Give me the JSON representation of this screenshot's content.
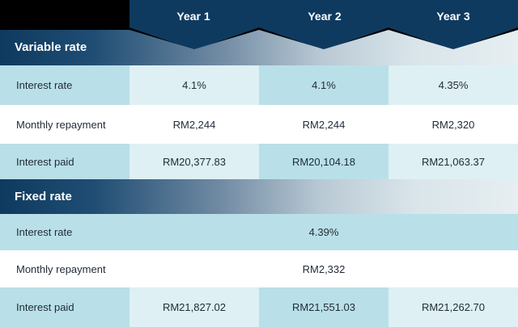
{
  "columns": [
    "Year 1",
    "Year 2",
    "Year 3"
  ],
  "colors": {
    "header_navy": "#0f3a5f",
    "row_dark": "#b9e0e8",
    "row_light": "#def0f3",
    "row_white": "#ffffff"
  },
  "variable_rate": {
    "title": "Variable rate",
    "rows": [
      {
        "label": "Interest rate",
        "values": [
          "4.1%",
          "4.1%",
          "4.35%"
        ]
      },
      {
        "label": "Monthly repayment",
        "values": [
          "RM2,244",
          "RM2,244",
          "RM2,320"
        ]
      },
      {
        "label": "Interest paid",
        "values": [
          "RM20,377.83",
          "RM20,104.18",
          "RM21,063.37"
        ]
      }
    ]
  },
  "fixed_rate": {
    "title": "Fixed rate",
    "rows": [
      {
        "label": "Interest rate",
        "merged_value": "4.39%"
      },
      {
        "label": "Monthly repayment",
        "merged_value": "RM2,332"
      },
      {
        "label": "Interest paid",
        "values": [
          "RM21,827.02",
          "RM21,551.03",
          "RM21,262.70"
        ]
      }
    ]
  }
}
